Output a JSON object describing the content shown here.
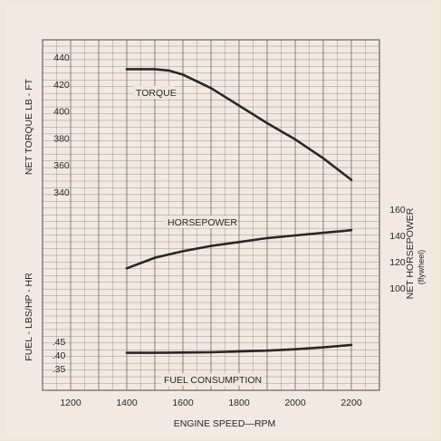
{
  "colors": {
    "paper": "#efe6dc",
    "frame": "#ffffff",
    "grid": "#6b625c",
    "curve": "#2b2726",
    "text": "#2a2623"
  },
  "chart_data": {
    "type": "line",
    "title": "",
    "xlabel": "ENGINE SPEED—RPM",
    "x_ticks": [
      "1200",
      "1400",
      "1600",
      "1800",
      "2000",
      "2200"
    ],
    "xlim": [
      1100,
      2300
    ],
    "grid": true,
    "axes": {
      "torque": {
        "label": "NET TORQUE  LB - FT",
        "ticks": [
          "440",
          "420",
          "400",
          "380",
          "360",
          "340"
        ],
        "range": [
          330,
          450
        ]
      },
      "horsepower": {
        "label": "NET HORSEPOWER",
        "sublabel": "(flywheel)",
        "ticks": [
          "160",
          "140",
          "120",
          "100"
        ],
        "range": [
          85,
          175
        ]
      },
      "fuel": {
        "label": "FUEL - LBS/HP - HR",
        "ticks": [
          ".45",
          ".40",
          ".35"
        ],
        "range": [
          0.34,
          0.46
        ]
      }
    },
    "series": [
      {
        "name": "TORQUE",
        "axis": "torque",
        "x": [
          1400,
          1500,
          1550,
          1600,
          1700,
          1800,
          1900,
          2000,
          2100,
          2200
        ],
        "y": [
          431,
          431,
          430,
          427,
          417,
          404,
          391,
          379,
          365,
          349
        ]
      },
      {
        "name": "HORSEPOWER",
        "axis": "horsepower",
        "x": [
          1400,
          1500,
          1600,
          1700,
          1800,
          1900,
          2000,
          2100,
          2200
        ],
        "y": [
          115,
          123,
          128,
          132,
          135,
          138,
          140,
          142,
          144
        ]
      },
      {
        "name": "FUEL CONSUMPTION",
        "axis": "fuel",
        "x": [
          1400,
          1500,
          1600,
          1700,
          1800,
          1900,
          2000,
          2100,
          2200
        ],
        "y": [
          0.408,
          0.408,
          0.409,
          0.41,
          0.413,
          0.416,
          0.421,
          0.428,
          0.437
        ]
      }
    ]
  }
}
